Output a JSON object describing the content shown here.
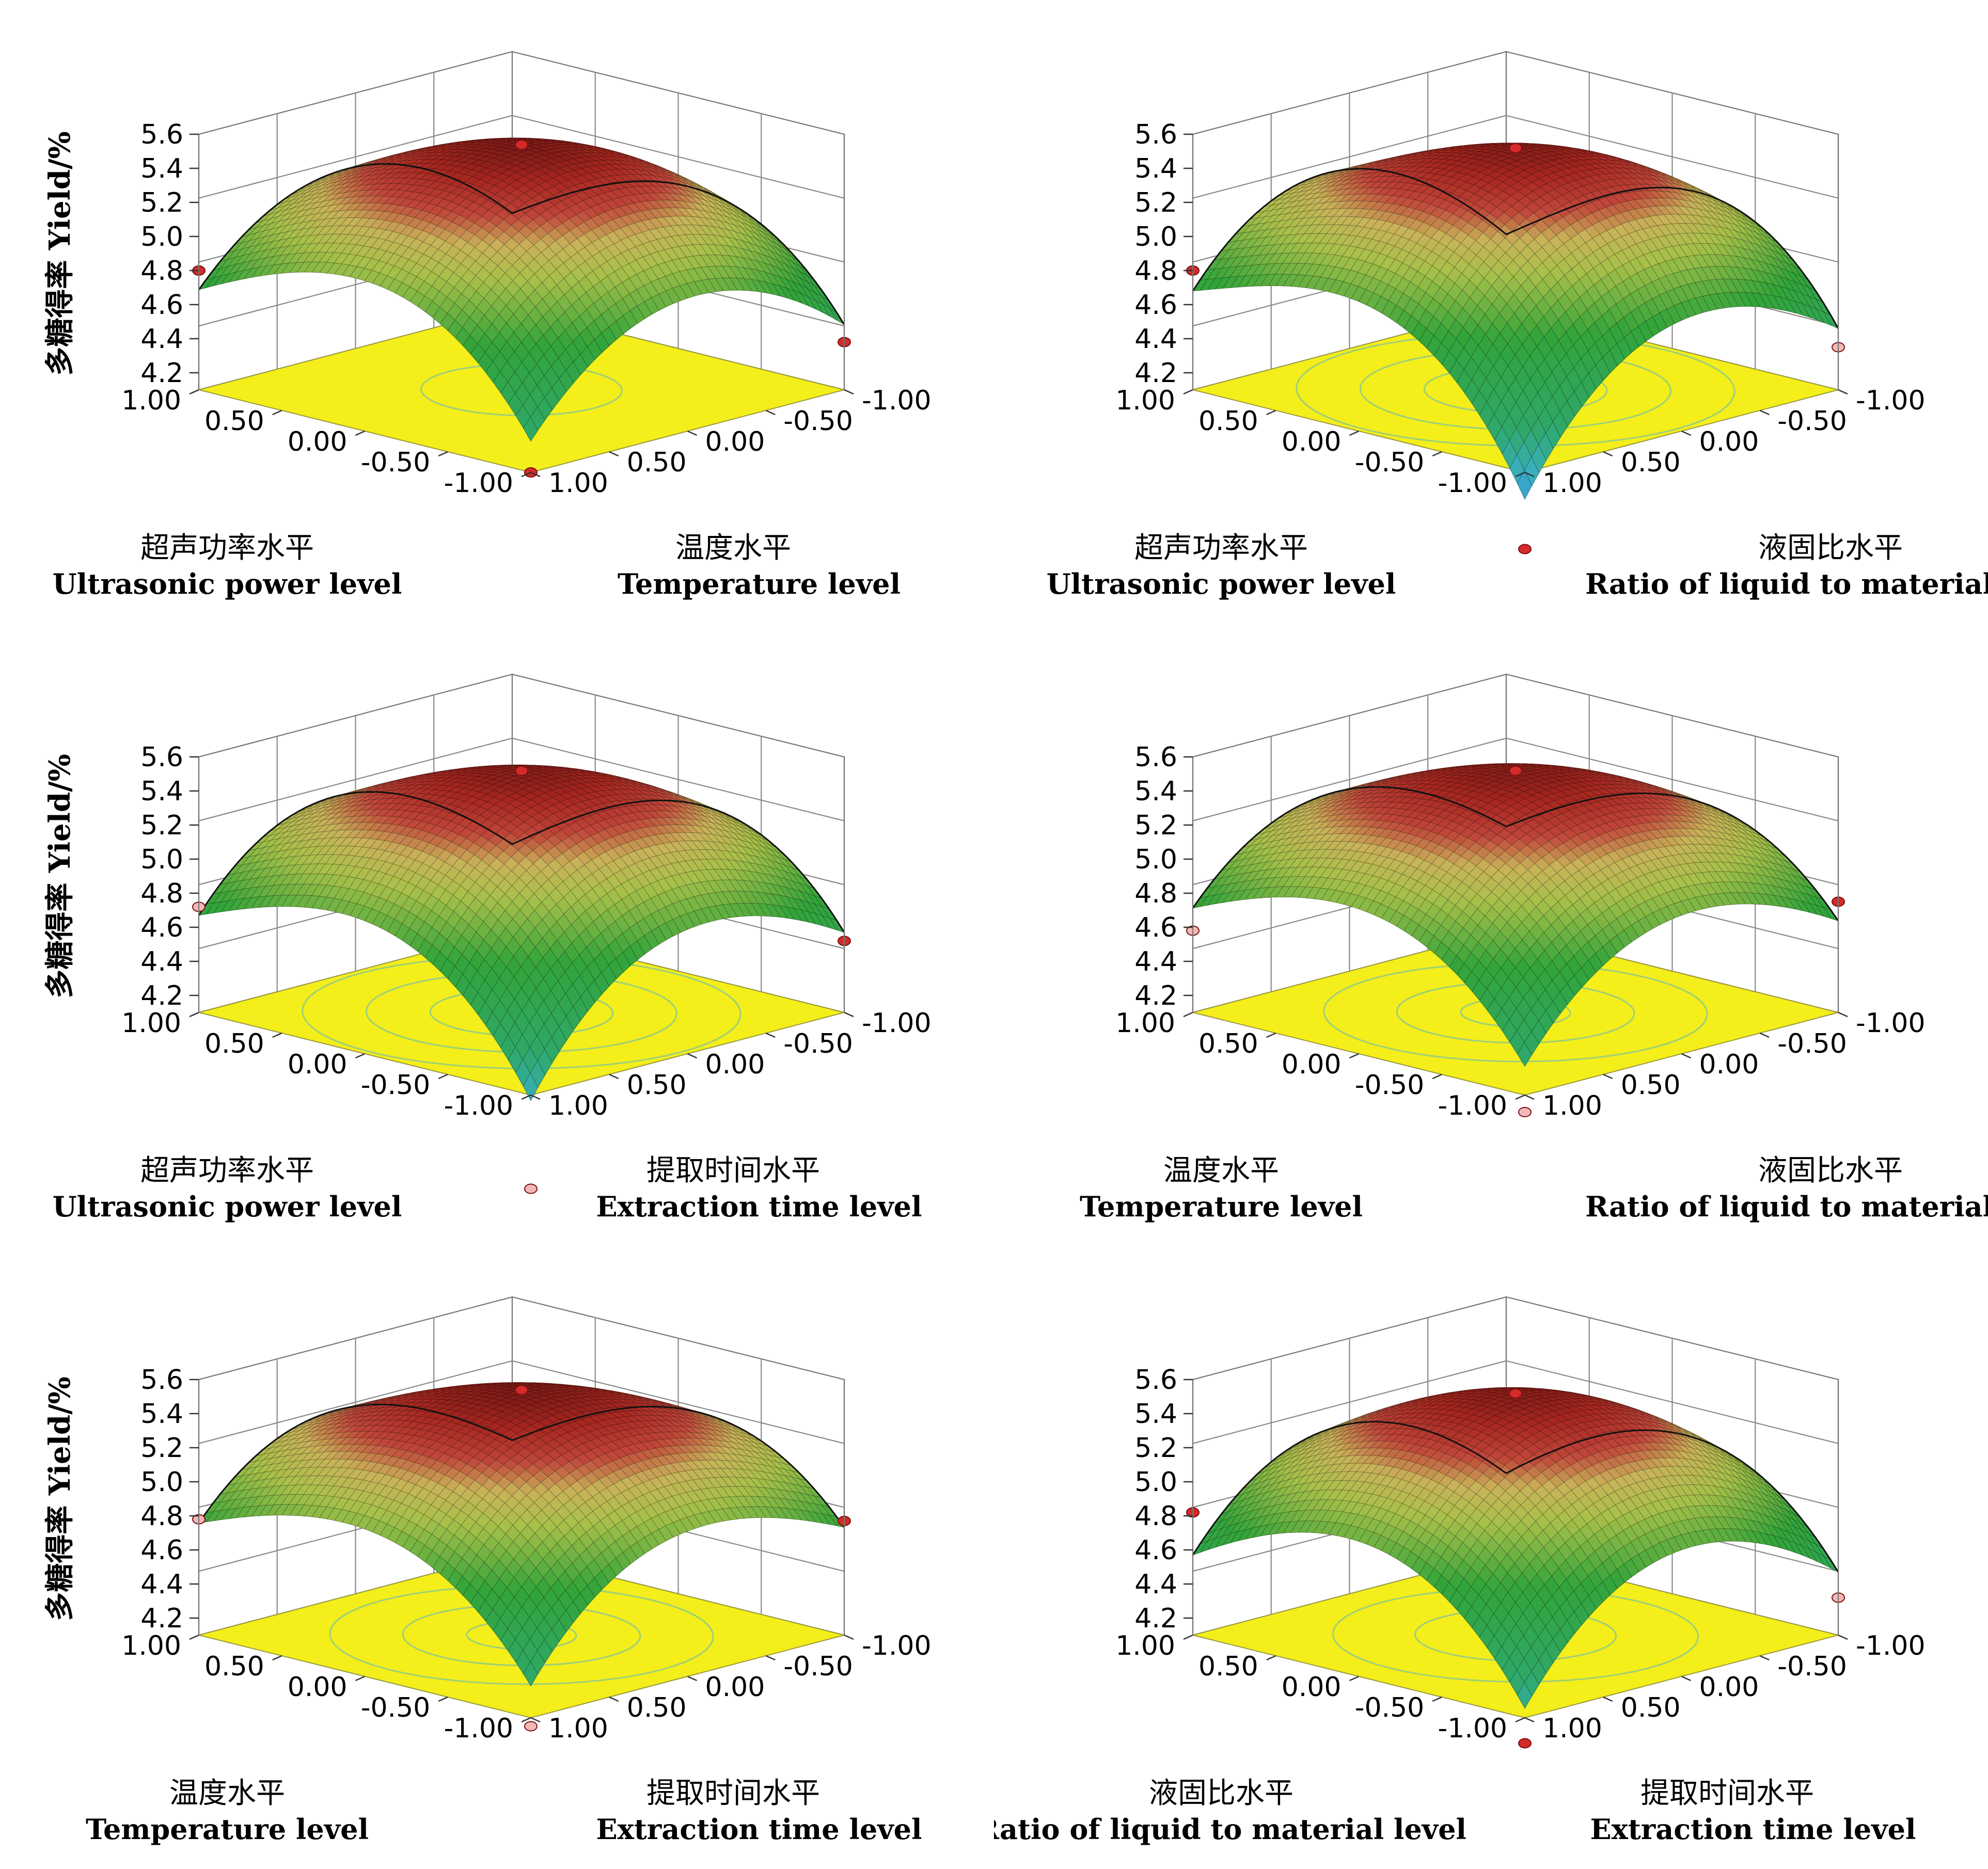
{
  "chart_data": [
    {
      "type": "surface",
      "zlabel": "多糖得率 Yield/%",
      "x_axis": {
        "label_cn": "超声功率水平",
        "label_en": "Ultrasonic power level",
        "ticks": [
          "1.00",
          "0.50",
          "0.00",
          "-0.50",
          "-1.00"
        ]
      },
      "y_axis": {
        "label_cn": "温度水平",
        "label_en": "Temperature level",
        "ticks": [
          "-1.00",
          "-0.50",
          "0.00",
          "0.50",
          "1.00"
        ]
      },
      "z_ticks": [
        "5.6",
        "5.4",
        "5.2",
        "5.0",
        "4.8",
        "4.6",
        "4.4",
        "4.2"
      ],
      "zlim": [
        4.1,
        5.6
      ],
      "peak": 5.52,
      "corners": {
        "left": 4.79,
        "right": 4.38,
        "front": 4.1
      },
      "points": [
        {
          "at": "peak",
          "z": 5.52,
          "color": "#d42a2a"
        },
        {
          "at": "left",
          "z": 4.8,
          "color": "#d42a2a"
        },
        {
          "at": "right",
          "z": 4.38,
          "color": "#d42a2a"
        },
        {
          "at": "front",
          "z": 4.1,
          "color": "#d42a2a"
        }
      ],
      "contours": [
        0.22
      ]
    },
    {
      "type": "surface",
      "zlabel": "",
      "x_axis": {
        "label_cn": "超声功率水平",
        "label_en": "Ultrasonic power level",
        "ticks": [
          "1.00",
          "0.50",
          "0.00",
          "-0.50",
          "-1.00"
        ]
      },
      "y_axis": {
        "label_cn": "液固比水平",
        "label_en": "Ratio of liquid to material level",
        "ticks": [
          "-1.00",
          "-0.50",
          "0.00",
          "0.50",
          "1.00"
        ]
      },
      "z_ticks": [
        "5.6",
        "5.4",
        "5.2",
        "5.0",
        "4.8",
        "4.6",
        "4.4",
        "4.2"
      ],
      "zlim": [
        4.1,
        5.6
      ],
      "peak": 5.5,
      "corners": {
        "left": 4.79,
        "right": 4.35,
        "front": 3.65
      },
      "points": [
        {
          "at": "peak",
          "z": 5.5,
          "color": "#d42a2a"
        },
        {
          "at": "left",
          "z": 4.8,
          "color": "#d42a2a"
        },
        {
          "at": "right",
          "z": 4.35,
          "color": "#f2b8b8"
        },
        {
          "at": "front",
          "z": 3.65,
          "color": "#d42a2a"
        }
      ],
      "contours": [
        0.2,
        0.34,
        0.48
      ]
    },
    {
      "type": "surface",
      "zlabel": "多糖得率 Yield/%",
      "x_axis": {
        "label_cn": "超声功率水平",
        "label_en": "Ultrasonic power level",
        "ticks": [
          "1.00",
          "0.50",
          "0.00",
          "-0.50",
          "-1.00"
        ]
      },
      "y_axis": {
        "label_cn": "提取时间水平",
        "label_en": "Extraction time level",
        "ticks": [
          "-1.00",
          "-0.50",
          "0.00",
          "0.50",
          "1.00"
        ]
      },
      "z_ticks": [
        "5.6",
        "5.4",
        "5.2",
        "5.0",
        "4.8",
        "4.6",
        "4.4",
        "4.2"
      ],
      "zlim": [
        4.1,
        5.6
      ],
      "peak": 5.5,
      "corners": {
        "left": 4.72,
        "right": 4.52,
        "front": 3.8
      },
      "points": [
        {
          "at": "peak",
          "z": 5.5,
          "color": "#d42a2a"
        },
        {
          "at": "left",
          "z": 4.72,
          "color": "#f2b8b8"
        },
        {
          "at": "right",
          "z": 4.52,
          "color": "#d42a2a"
        },
        {
          "at": "front",
          "z": 3.55,
          "color": "#f2b8b8"
        }
      ],
      "contours": [
        0.2,
        0.34,
        0.48
      ]
    },
    {
      "type": "surface",
      "zlabel": "",
      "x_axis": {
        "label_cn": "温度水平",
        "label_en": "Temperature level",
        "ticks": [
          "1.00",
          "0.50",
          "0.00",
          "-0.50",
          "-1.00"
        ]
      },
      "y_axis": {
        "label_cn": "液固比水平",
        "label_en": "Ratio of liquid to material level",
        "ticks": [
          "-1.00",
          "-0.50",
          "0.00",
          "0.50",
          "1.00"
        ]
      },
      "z_ticks": [
        "5.6",
        "5.4",
        "5.2",
        "5.0",
        "4.8",
        "4.6",
        "4.4",
        "4.2"
      ],
      "zlim": [
        4.1,
        5.6
      ],
      "peak": 5.5,
      "corners": {
        "left": 4.75,
        "right": 4.6,
        "front": 4.05
      },
      "points": [
        {
          "at": "peak",
          "z": 5.5,
          "color": "#d42a2a"
        },
        {
          "at": "left",
          "z": 4.58,
          "color": "#f2b8b8"
        },
        {
          "at": "right",
          "z": 4.75,
          "color": "#d42a2a"
        },
        {
          "at": "front",
          "z": 4.0,
          "color": "#f2b8b8"
        }
      ],
      "contours": [
        0.12,
        0.26,
        0.42
      ]
    },
    {
      "type": "surface",
      "zlabel": "多糖得率 Yield/%",
      "x_axis": {
        "label_cn": "温度水平",
        "label_en": "Temperature level",
        "ticks": [
          "1.00",
          "0.50",
          "0.00",
          "-0.50",
          "-1.00"
        ]
      },
      "y_axis": {
        "label_cn": "提取时间水平",
        "label_en": "Extraction time level",
        "ticks": [
          "-1.00",
          "-0.50",
          "0.00",
          "0.50",
          "1.00"
        ]
      },
      "z_ticks": [
        "5.6",
        "5.4",
        "5.2",
        "5.0",
        "4.8",
        "4.6",
        "4.4",
        "4.2"
      ],
      "zlim": [
        4.1,
        5.6
      ],
      "peak": 5.52,
      "corners": {
        "left": 4.77,
        "right": 4.72,
        "front": 4.05
      },
      "points": [
        {
          "at": "peak",
          "z": 5.52,
          "color": "#d42a2a"
        },
        {
          "at": "left",
          "z": 4.78,
          "color": "#f2b8b8"
        },
        {
          "at": "right",
          "z": 4.77,
          "color": "#d42a2a"
        },
        {
          "at": "front",
          "z": 4.05,
          "color": "#f2b8b8"
        }
      ],
      "contours": [
        0.12,
        0.26,
        0.42
      ]
    },
    {
      "type": "surface",
      "zlabel": "",
      "x_axis": {
        "label_cn": "液固比水平",
        "label_en": "Ratio of liquid to material level",
        "ticks": [
          "1.00",
          "0.50",
          "0.00",
          "-0.50",
          "-1.00"
        ]
      },
      "y_axis": {
        "label_cn": "提取时间水平",
        "label_en": "Extraction time level",
        "ticks": [
          "-1.00",
          "-0.50",
          "0.00",
          "0.50",
          "1.00"
        ]
      },
      "z_ticks": [
        "5.6",
        "5.4",
        "5.2",
        "5.0",
        "4.8",
        "4.6",
        "4.4",
        "4.2"
      ],
      "zlim": [
        4.1,
        5.6
      ],
      "peak": 5.5,
      "corners": {
        "left": 4.62,
        "right": 4.42,
        "front": 3.95
      },
      "points": [
        {
          "at": "peak",
          "z": 5.5,
          "color": "#d42a2a"
        },
        {
          "at": "left",
          "z": 4.82,
          "color": "#d42a2a"
        },
        {
          "at": "right",
          "z": 4.32,
          "color": "#f2b8b8"
        },
        {
          "at": "front",
          "z": 3.95,
          "color": "#d42a2a"
        }
      ],
      "contours": [
        0.22,
        0.4
      ]
    }
  ]
}
